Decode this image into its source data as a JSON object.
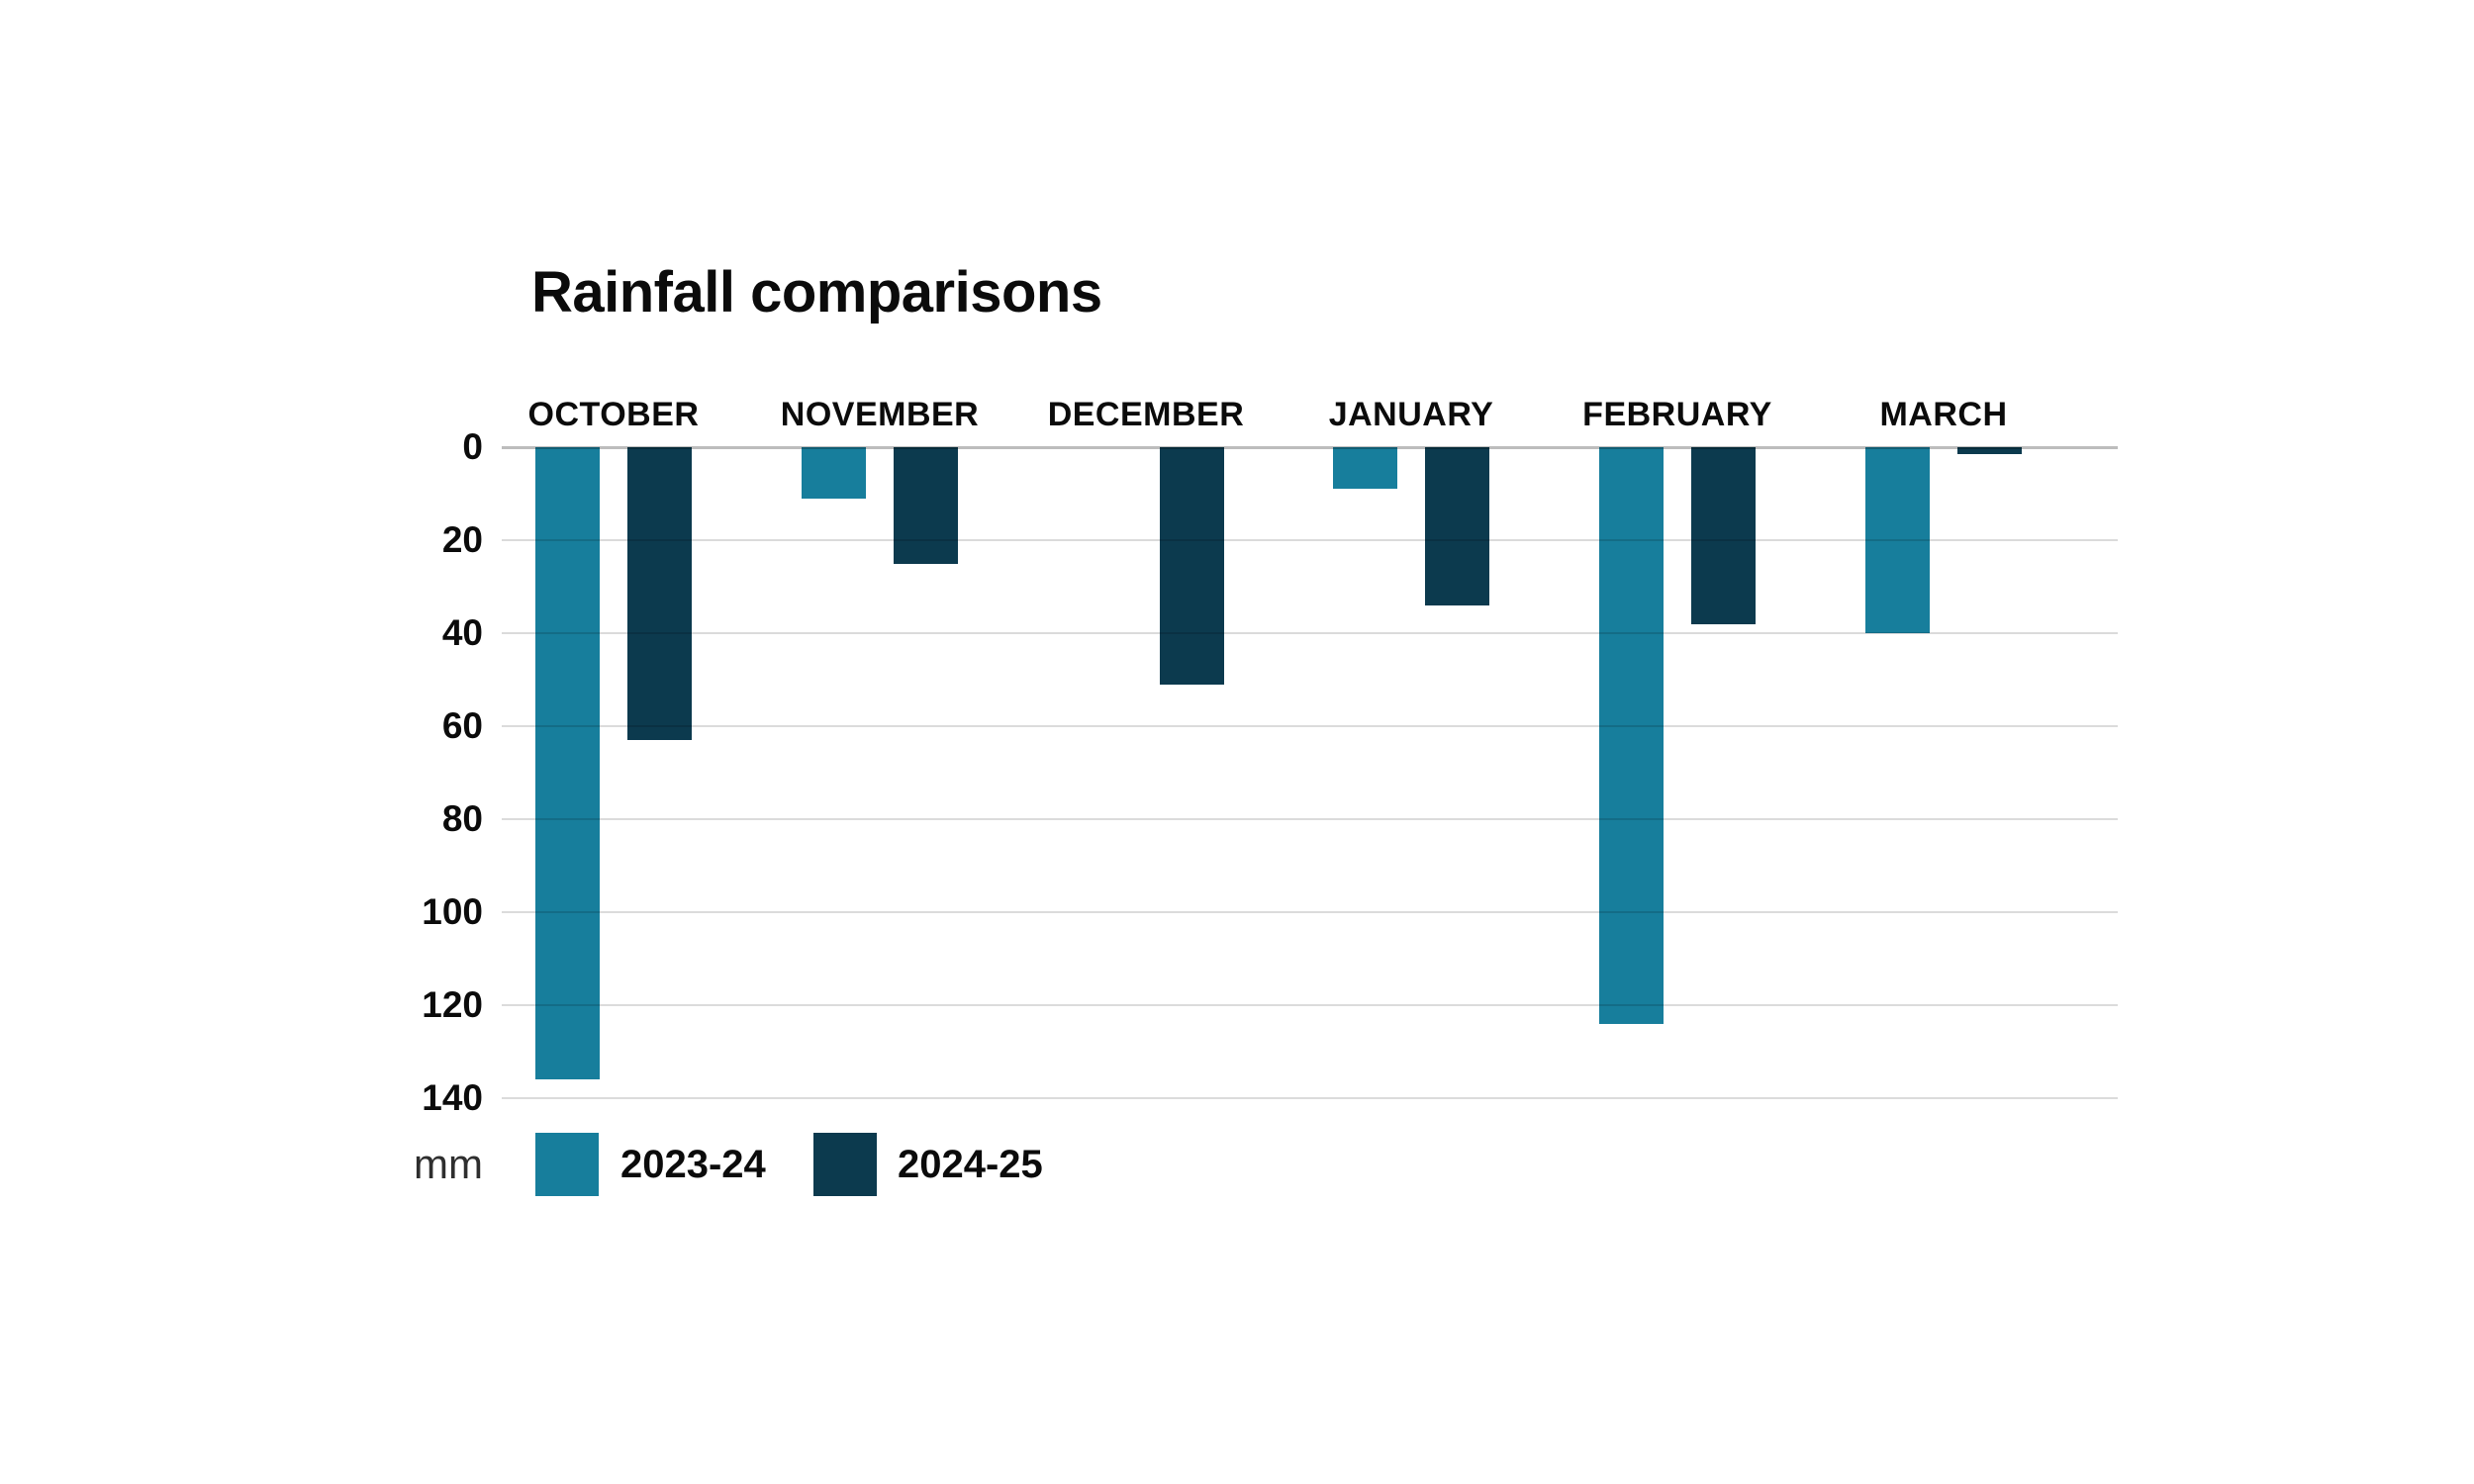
{
  "chart_data": {
    "type": "bar",
    "title": "Rainfall comparisons",
    "unit": "mm",
    "orientation": "bars-extend-downward-from-zero-baseline",
    "categories": [
      "OCTOBER",
      "NOVEMBER",
      "DECEMBER",
      "JANUARY",
      "FEBRUARY",
      "MARCH"
    ],
    "series": [
      {
        "name": "2023-24",
        "color": "#177E9C",
        "values": [
          136,
          11,
          0,
          9,
          124,
          40
        ]
      },
      {
        "name": "2024-25",
        "color": "#0C3A4E",
        "values": [
          63,
          25,
          51,
          34,
          38,
          1.5
        ]
      }
    ],
    "y_axis": {
      "ticks": [
        0,
        20,
        40,
        60,
        80,
        100,
        120,
        140
      ],
      "min": 0,
      "max": 140,
      "unit": "mm",
      "direction": "down"
    },
    "grid": true,
    "legend_position": "bottom-left",
    "colors": {
      "grid": "rgba(0,0,0,0.14)",
      "zero_line": "rgba(0,0,0,0.26)",
      "text": "#0b0b0b",
      "background": "#ffffff"
    }
  }
}
